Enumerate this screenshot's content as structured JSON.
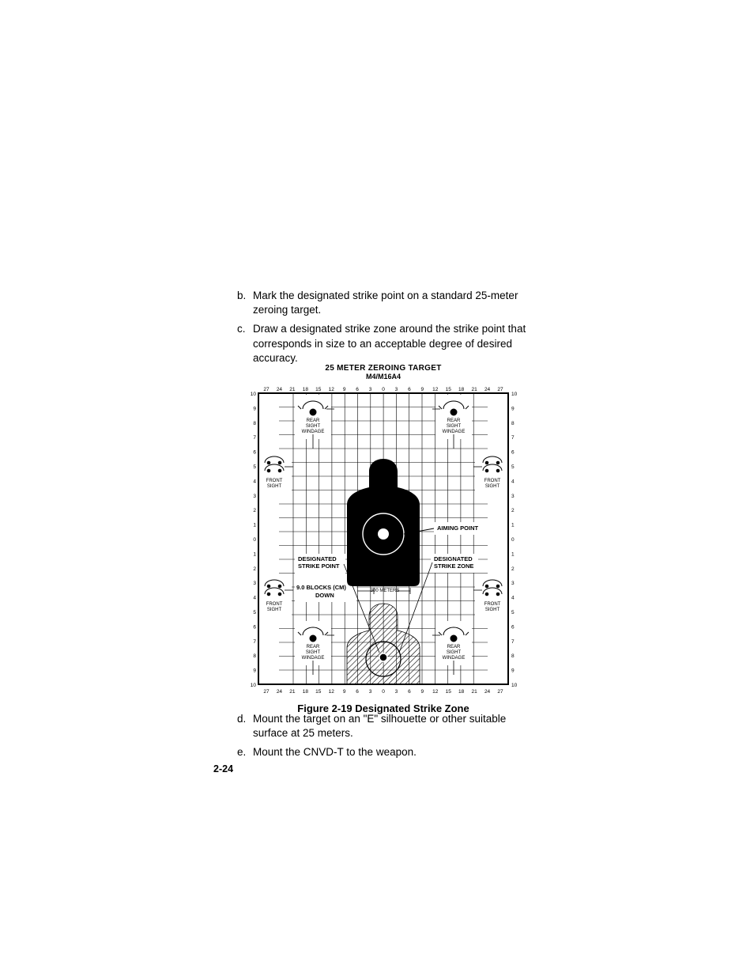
{
  "items_upper": [
    {
      "letter": "b.",
      "text": "Mark the designated strike point on a standard 25-meter zeroing target."
    },
    {
      "letter": "c.",
      "text": "Draw a designated strike zone around the strike point that corresponds in size to an acceptable degree of desired accuracy."
    }
  ],
  "items_lower": [
    {
      "letter": "d.",
      "text": "Mount the target on an \"E\" silhouette or other suitable surface at 25 meters."
    },
    {
      "letter": "e.",
      "text": "Mount the CNVD-T to the weapon."
    }
  ],
  "figure": {
    "title": "25 METER ZEROING TARGET",
    "subtitle": "M4/M16A4",
    "caption": "Figure 2-19  Designated Strike Zone",
    "xticks": [
      "27",
      "24",
      "21",
      "18",
      "15",
      "12",
      "9",
      "6",
      "3",
      "0",
      "3",
      "6",
      "9",
      "12",
      "15",
      "18",
      "21",
      "24",
      "27"
    ],
    "yticks_left": [
      "10",
      "9",
      "8",
      "7",
      "6",
      "5",
      "4",
      "3",
      "2",
      "1",
      "0",
      "1",
      "2",
      "3",
      "4",
      "5",
      "6",
      "7",
      "8",
      "9",
      "10"
    ],
    "yticks_right": [
      "10",
      "9",
      "8",
      "7",
      "6",
      "5",
      "4",
      "3",
      "2",
      "1",
      "0",
      "1",
      "2",
      "3",
      "4",
      "5",
      "6",
      "7",
      "8",
      "9",
      "10"
    ],
    "labels": {
      "rear_sight": "REAR\nSIGHT\nWINDAGE",
      "front_sight": "FRONT\nSIGHT",
      "aiming_point": "AIMING POINT",
      "designated_strike_point": "DESIGNATED\nSTRIKE POINT",
      "designated_strike_zone": "DESIGNATED\nSTRIKE ZONE",
      "blocks_down": "9.0 BLOCKS (CM)\nDOWN",
      "meters_300": "300 METERS"
    },
    "colors": {
      "background": "#ffffff",
      "grid": "#000000",
      "silhouette": "#000000",
      "hatch": "#808080"
    },
    "grid_cols": 19,
    "grid_rows": 21,
    "silhouette_center_row": 10,
    "strike_zone_offset_blocks": 9.0
  },
  "page_number": "2-24"
}
